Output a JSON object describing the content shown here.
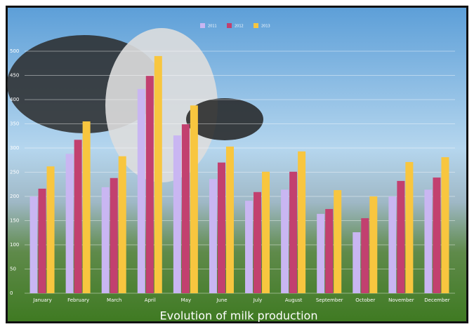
{
  "chart_data": {
    "type": "bar",
    "title": "Evolution of milk production",
    "categories": [
      "January",
      "February",
      "March",
      "April",
      "May",
      "June",
      "July",
      "August",
      "September",
      "October",
      "November",
      "December"
    ],
    "series": [
      {
        "name": "2011",
        "color": "#c9b6f2",
        "values": [
          200,
          288,
          219,
          422,
          326,
          236,
          191,
          214,
          164,
          126,
          200,
          214
        ]
      },
      {
        "name": "2012",
        "color": "#c2406f",
        "values": [
          216,
          317,
          238,
          449,
          349,
          270,
          209,
          251,
          174,
          155,
          232,
          239
        ]
      },
      {
        "name": "2013",
        "color": "#f8c63f",
        "values": [
          262,
          355,
          283,
          490,
          388,
          303,
          251,
          293,
          213,
          200,
          271,
          281
        ]
      }
    ],
    "ylim": [
      0,
      500
    ],
    "yticks": [
      0,
      50,
      100,
      150,
      200,
      250,
      300,
      350,
      400,
      450,
      500
    ],
    "grid": true,
    "legend": "top"
  }
}
